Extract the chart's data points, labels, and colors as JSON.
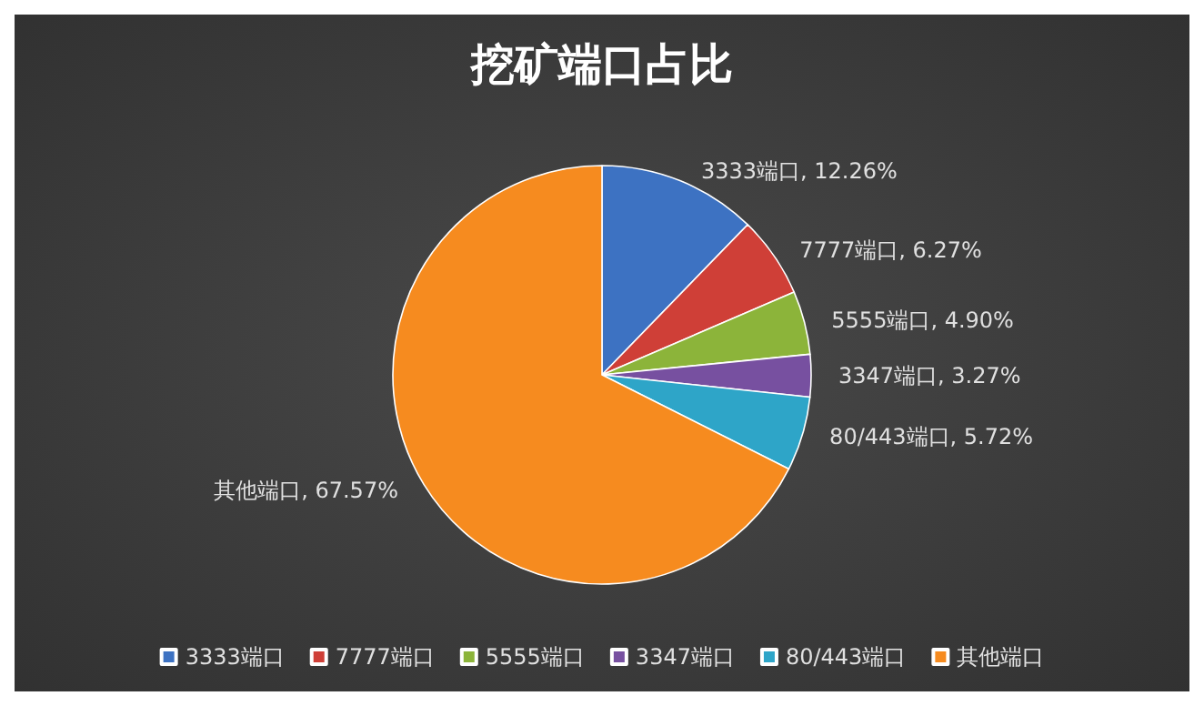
{
  "chart_data": {
    "type": "pie",
    "title": "挖矿端口占比",
    "categories": [
      "3333端口",
      "7777端口",
      "5555端口",
      "3347端口",
      "80/443端口",
      "其他端口"
    ],
    "values": [
      12.26,
      6.27,
      4.9,
      3.27,
      5.72,
      67.57
    ],
    "value_labels": [
      "3333端口, 12.26%",
      "7777端口, 6.27%",
      "5555端口, 4.90%",
      "3347端口, 3.27%",
      "80/443端口, 5.72%",
      "其他端口, 67.57%"
    ],
    "colors": [
      "#3d72c2",
      "#cf3f37",
      "#8cb43a",
      "#7750a0",
      "#2ea5c8",
      "#f68b1f"
    ],
    "legend": "bottom"
  }
}
